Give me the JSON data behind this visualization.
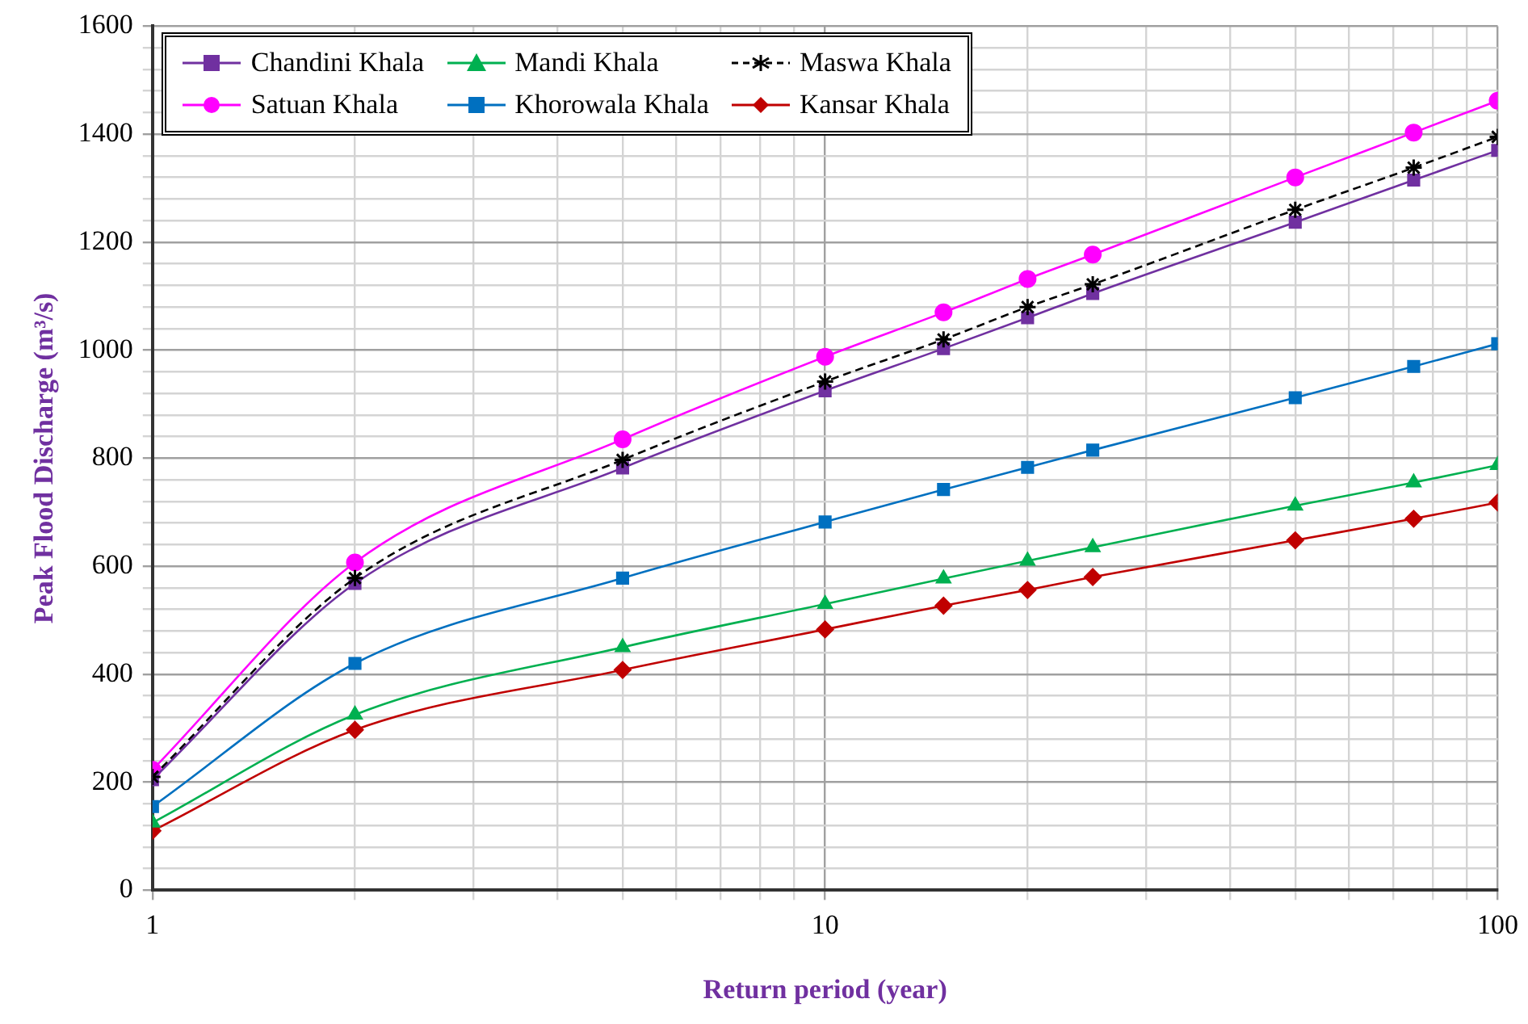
{
  "chart_data": {
    "type": "line",
    "xlabel": "Return period (year)",
    "ylabel": "Peak Flood Discharge (m³/s)",
    "log": "x",
    "xlim": [
      1,
      100
    ],
    "ylim": [
      0,
      1600
    ],
    "xticks": [
      1,
      {
        "value": 2,
        "label": null
      },
      {
        "value": 3,
        "label": null
      },
      {
        "value": 4,
        "label": null
      },
      {
        "value": 5,
        "label": null
      },
      {
        "value": 6,
        "label": null
      },
      {
        "value": 7,
        "label": null
      },
      {
        "value": 8,
        "label": null
      },
      {
        "value": 9,
        "label": null
      },
      10,
      {
        "value": 20,
        "label": null
      },
      {
        "value": 30,
        "label": null
      },
      {
        "value": 40,
        "label": null
      },
      {
        "value": 50,
        "label": null
      },
      {
        "value": 60,
        "label": null
      },
      {
        "value": 70,
        "label": null
      },
      {
        "value": 80,
        "label": null
      },
      {
        "value": 90,
        "label": null
      },
      100
    ],
    "yticks": [
      0,
      {
        "value": 40,
        "label": null
      },
      {
        "value": 80,
        "label": null
      },
      {
        "value": 120,
        "label": null
      },
      {
        "value": 160,
        "label": null
      },
      200,
      {
        "value": 240,
        "label": null
      },
      {
        "value": 280,
        "label": null
      },
      {
        "value": 320,
        "label": null
      },
      {
        "value": 360,
        "label": null
      },
      400,
      {
        "value": 440,
        "label": null
      },
      {
        "value": 480,
        "label": null
      },
      {
        "value": 520,
        "label": null
      },
      {
        "value": 560,
        "label": null
      },
      600,
      {
        "value": 640,
        "label": null
      },
      {
        "value": 680,
        "label": null
      },
      {
        "value": 720,
        "label": null
      },
      {
        "value": 760,
        "label": null
      },
      800,
      {
        "value": 840,
        "label": null
      },
      {
        "value": 880,
        "label": null
      },
      {
        "value": 920,
        "label": null
      },
      {
        "value": 960,
        "label": null
      },
      1000,
      {
        "value": 1040,
        "label": null
      },
      {
        "value": 1080,
        "label": null
      },
      {
        "value": 1120,
        "label": null
      },
      {
        "value": 1160,
        "label": null
      },
      1200,
      {
        "value": 1240,
        "label": null
      },
      {
        "value": 1280,
        "label": null
      },
      {
        "value": 1320,
        "label": null
      },
      {
        "value": 1360,
        "label": null
      },
      1400,
      {
        "value": 1440,
        "label": null
      },
      {
        "value": 1480,
        "label": null
      },
      {
        "value": 1520,
        "label": null
      },
      {
        "value": 1560,
        "label": null
      },
      1600
    ],
    "grid": true,
    "legend": "top left",
    "x": [
      1,
      2,
      5,
      10,
      15,
      20,
      25,
      50,
      75,
      100
    ],
    "series": [
      {
        "name": "Chandini Khala",
        "color": "#7030a0",
        "marker": "square",
        "values": [
          205,
          568,
          782,
          925,
          1003,
          1060,
          1105,
          1237,
          1315,
          1370
        ]
      },
      {
        "name": "Mandi Khala",
        "color": "#00b050",
        "marker": "triangle",
        "values": [
          125,
          325,
          450,
          530,
          577,
          610,
          635,
          712,
          755,
          787
        ]
      },
      {
        "name": "Maswa Khala",
        "color": "#000000",
        "marker": "cross",
        "line_style": "dashed",
        "values": [
          210,
          578,
          797,
          942,
          1020,
          1080,
          1122,
          1260,
          1338,
          1395
        ]
      },
      {
        "name": "Satuan Khala",
        "color": "#ff00ff",
        "marker": "circle",
        "values": [
          223,
          607,
          835,
          988,
          1070,
          1132,
          1177,
          1320,
          1403,
          1462
        ]
      },
      {
        "name": "Khorowala Khala",
        "color": "#0070c0",
        "marker": "square",
        "values": [
          155,
          420,
          578,
          682,
          742,
          783,
          815,
          912,
          970,
          1012
        ]
      },
      {
        "name": "Kansar Khala",
        "color": "#c00000",
        "marker": "diamond",
        "values": [
          110,
          297,
          408,
          483,
          527,
          556,
          580,
          648,
          688,
          718
        ]
      }
    ]
  }
}
